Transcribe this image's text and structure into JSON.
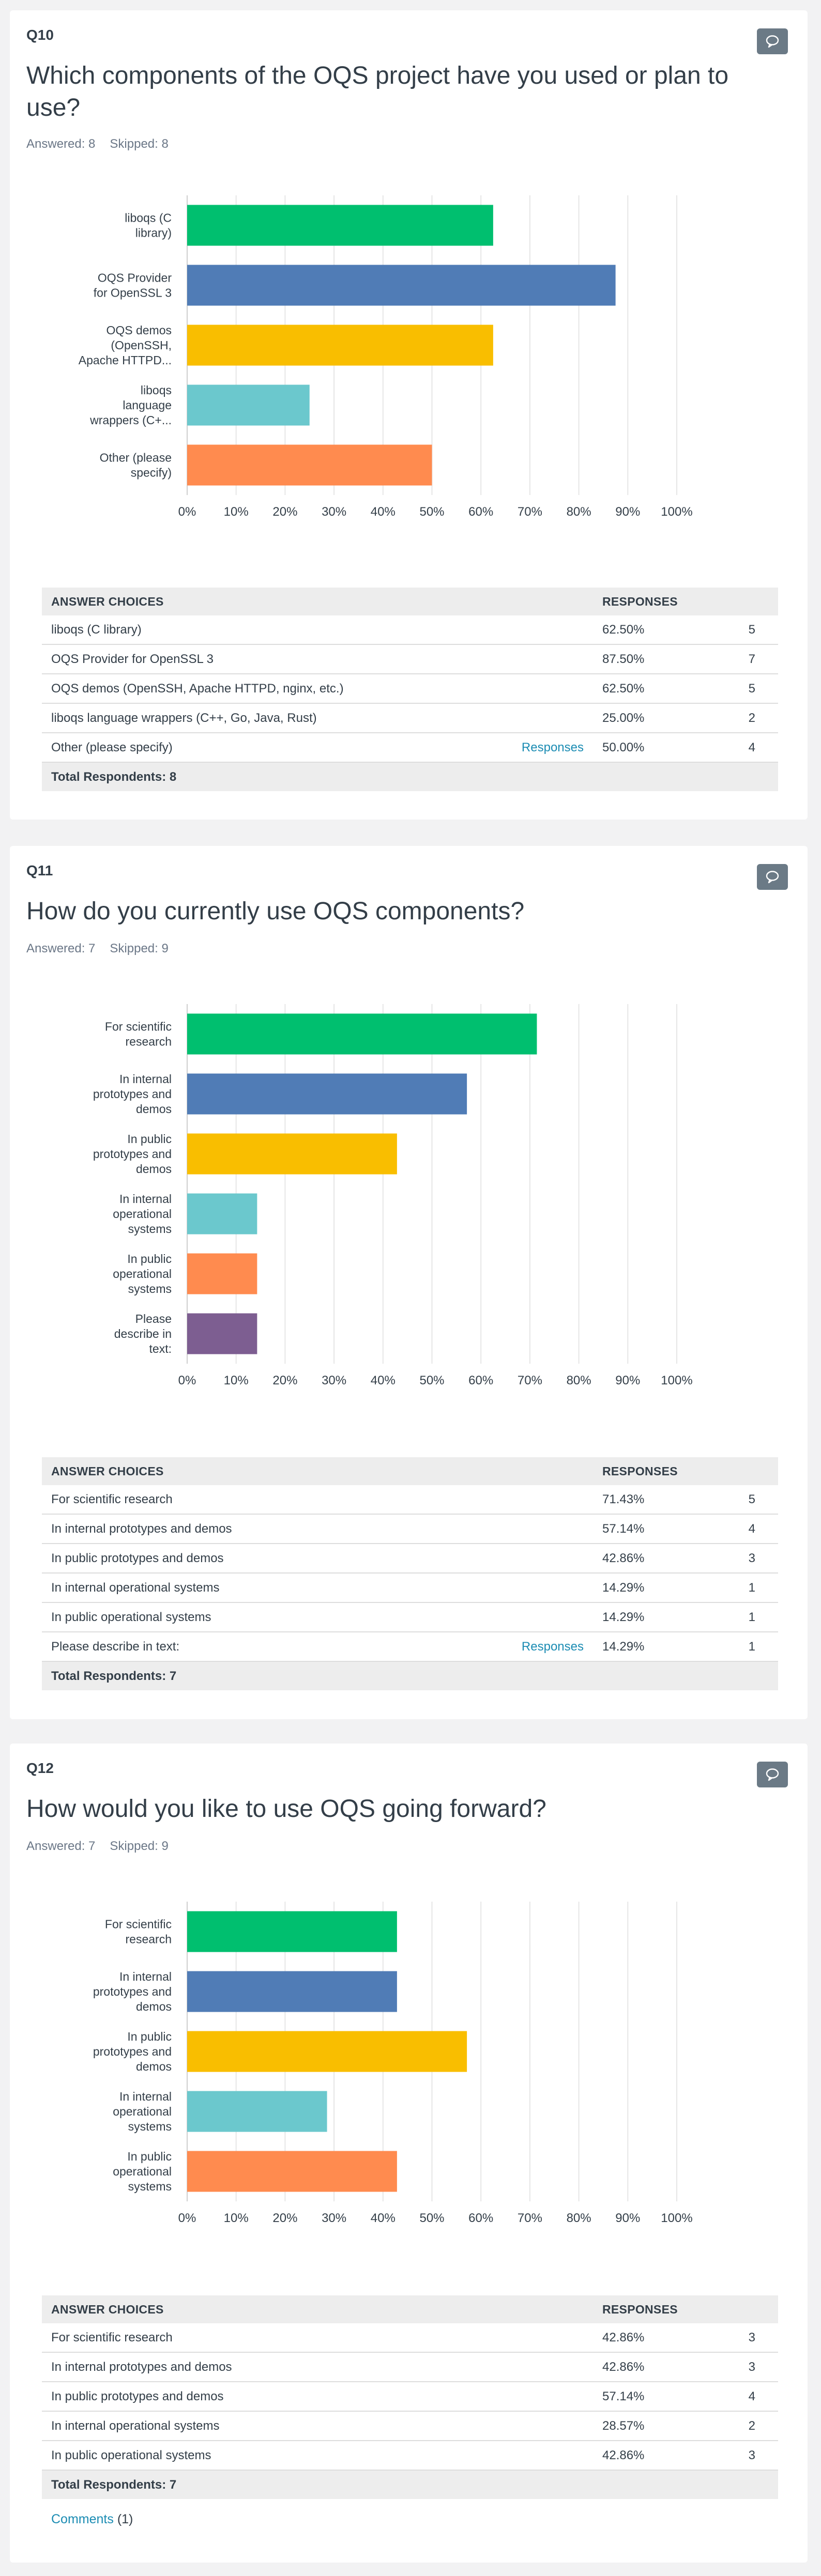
{
  "colors": [
    "#00bf6f",
    "#507cb6",
    "#f9be00",
    "#6bc8cd",
    "#ff8b4f",
    "#7d5e91"
  ],
  "questions": [
    {
      "number": "Q10",
      "title": "Which components of the OQS project have you used or plan to use?",
      "answered": "Answered: 8",
      "skipped": "Skipped: 8",
      "chart_data": {
        "type": "bar",
        "orientation": "horizontal",
        "categories": [
          [
            "liboqs (C",
            "library)"
          ],
          [
            "OQS Provider",
            "for OpenSSL 3"
          ],
          [
            "OQS demos",
            "(OpenSSH,",
            "Apache HTTPD..."
          ],
          [
            "liboqs",
            "language",
            "wrappers (C+..."
          ],
          [
            "Other (please",
            "specify)"
          ]
        ],
        "values": [
          62.5,
          87.5,
          62.5,
          25.0,
          50.0
        ],
        "xlim": [
          0,
          100
        ],
        "xticks": [
          "0%",
          "10%",
          "20%",
          "30%",
          "40%",
          "50%",
          "60%",
          "70%",
          "80%",
          "90%",
          "100%"
        ],
        "grid": true
      },
      "table": {
        "headers": [
          "ANSWER CHOICES",
          "RESPONSES"
        ],
        "rows": [
          {
            "choice": "liboqs (C library)",
            "link": "",
            "pct": "62.50%",
            "count": "5"
          },
          {
            "choice": "OQS Provider for OpenSSL 3",
            "link": "",
            "pct": "87.50%",
            "count": "7"
          },
          {
            "choice": "OQS demos (OpenSSH, Apache HTTPD, nginx, etc.)",
            "link": "",
            "pct": "62.50%",
            "count": "5"
          },
          {
            "choice": "liboqs language wrappers (C++, Go, Java, Rust)",
            "link": "",
            "pct": "25.00%",
            "count": "2"
          },
          {
            "choice": "Other (please specify)",
            "link": "Responses",
            "pct": "50.00%",
            "count": "4"
          }
        ],
        "total": "Total Respondents: 8"
      }
    },
    {
      "number": "Q11",
      "title": "How do you currently use OQS components?",
      "answered": "Answered: 7",
      "skipped": "Skipped: 9",
      "chart_data": {
        "type": "bar",
        "orientation": "horizontal",
        "categories": [
          [
            "For scientific",
            "research"
          ],
          [
            "In internal",
            "prototypes and",
            "demos"
          ],
          [
            "In public",
            "prototypes and",
            "demos"
          ],
          [
            "In internal",
            "operational",
            "systems"
          ],
          [
            "In public",
            "operational",
            "systems"
          ],
          [
            "Please",
            "describe in",
            "text:"
          ]
        ],
        "values": [
          71.43,
          57.14,
          42.86,
          14.29,
          14.29,
          14.29
        ],
        "xlim": [
          0,
          100
        ],
        "xticks": [
          "0%",
          "10%",
          "20%",
          "30%",
          "40%",
          "50%",
          "60%",
          "70%",
          "80%",
          "90%",
          "100%"
        ],
        "grid": true
      },
      "table": {
        "headers": [
          "ANSWER CHOICES",
          "RESPONSES"
        ],
        "rows": [
          {
            "choice": "For scientific research",
            "link": "",
            "pct": "71.43%",
            "count": "5"
          },
          {
            "choice": "In internal prototypes and demos",
            "link": "",
            "pct": "57.14%",
            "count": "4"
          },
          {
            "choice": "In public prototypes and demos",
            "link": "",
            "pct": "42.86%",
            "count": "3"
          },
          {
            "choice": "In internal operational systems",
            "link": "",
            "pct": "14.29%",
            "count": "1"
          },
          {
            "choice": "In public operational systems",
            "link": "",
            "pct": "14.29%",
            "count": "1"
          },
          {
            "choice": "Please describe in text:",
            "link": "Responses",
            "pct": "14.29%",
            "count": "1"
          }
        ],
        "total": "Total Respondents: 7"
      }
    },
    {
      "number": "Q12",
      "title": "How would you like to use OQS going forward?",
      "answered": "Answered: 7",
      "skipped": "Skipped: 9",
      "chart_data": {
        "type": "bar",
        "orientation": "horizontal",
        "categories": [
          [
            "For scientific",
            "research"
          ],
          [
            "In internal",
            "prototypes and",
            "demos"
          ],
          [
            "In public",
            "prototypes and",
            "demos"
          ],
          [
            "In internal",
            "operational",
            "systems"
          ],
          [
            "In public",
            "operational",
            "systems"
          ]
        ],
        "values": [
          42.86,
          42.86,
          57.14,
          28.57,
          42.86
        ],
        "xlim": [
          0,
          100
        ],
        "xticks": [
          "0%",
          "10%",
          "20%",
          "30%",
          "40%",
          "50%",
          "60%",
          "70%",
          "80%",
          "90%",
          "100%"
        ],
        "grid": true
      },
      "table": {
        "headers": [
          "ANSWER CHOICES",
          "RESPONSES"
        ],
        "rows": [
          {
            "choice": "For scientific research",
            "link": "",
            "pct": "42.86%",
            "count": "3"
          },
          {
            "choice": "In internal prototypes and demos",
            "link": "",
            "pct": "42.86%",
            "count": "3"
          },
          {
            "choice": "In public prototypes and demos",
            "link": "",
            "pct": "57.14%",
            "count": "4"
          },
          {
            "choice": "In internal operational systems",
            "link": "",
            "pct": "28.57%",
            "count": "2"
          },
          {
            "choice": "In public operational systems",
            "link": "",
            "pct": "42.86%",
            "count": "3"
          }
        ],
        "total": "Total Respondents: 7"
      },
      "comments": {
        "label": "Comments",
        "count": "(1)"
      }
    }
  ]
}
